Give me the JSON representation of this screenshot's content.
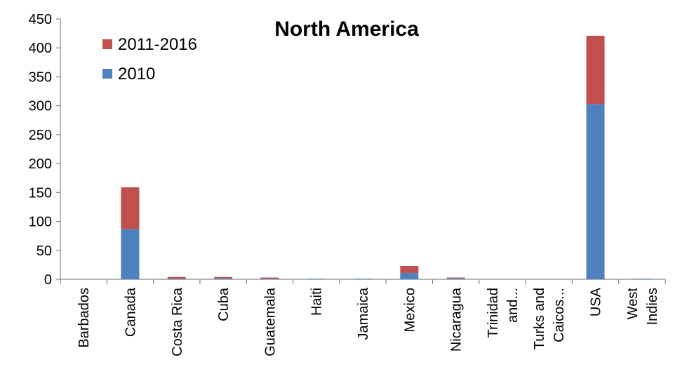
{
  "chart_data": {
    "type": "bar",
    "stacked": true,
    "title": "North America",
    "xlabel": "",
    "ylabel": "",
    "ylim": [
      0,
      450
    ],
    "yticks": [
      0,
      50,
      100,
      150,
      200,
      250,
      300,
      350,
      400,
      450
    ],
    "categories": [
      [
        "Barbados"
      ],
      [
        "Canada"
      ],
      [
        "Costa Rica"
      ],
      [
        "Cuba"
      ],
      [
        "Guatemala"
      ],
      [
        "Haiti"
      ],
      [
        "Jamaica"
      ],
      [
        "Mexico"
      ],
      [
        "Nicaragua"
      ],
      [
        "Trinidad",
        "and..."
      ],
      [
        "Turks and",
        "Caicos..."
      ],
      [
        "USA"
      ],
      [
        "West",
        "Indies"
      ]
    ],
    "series": [
      {
        "name": "2010",
        "color": "#4F81BD",
        "values": [
          0,
          87,
          1,
          2,
          1,
          1,
          1,
          11,
          2,
          0,
          0,
          303,
          1
        ]
      },
      {
        "name": "2011-2016",
        "color": "#C0504D",
        "values": [
          0,
          72,
          3,
          2,
          2,
          0,
          0,
          12,
          1,
          0,
          0,
          118,
          0
        ]
      }
    ],
    "legend": {
      "position": "top-left",
      "entries": [
        "2011-2016",
        "2010"
      ]
    },
    "grid": false
  }
}
